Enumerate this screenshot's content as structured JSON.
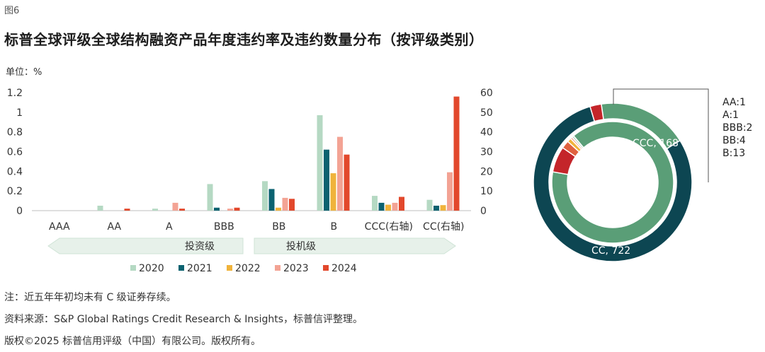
{
  "figure_label": "图6",
  "title": "标普全球评级全球结构融资产品年度违约率及违约数量分布（按评级类别）",
  "unit_label": "单位：%",
  "chart_data": [
    {
      "type": "bar",
      "categories": [
        "AAA",
        "AA",
        "A",
        "BBB",
        "BB",
        "B",
        "CCC(右轴)",
        "CC(右轴)"
      ],
      "right_axis_categories": [
        "CCC(右轴)",
        "CC(右轴)"
      ],
      "series": [
        {
          "name": "2020",
          "color": "#b5d9c3",
          "values": [
            0,
            0.05,
            0.02,
            0.27,
            0.3,
            0.97,
            7.5,
            5.5
          ]
        },
        {
          "name": "2021",
          "color": "#0b6270",
          "values": [
            0,
            0,
            0,
            0.03,
            0.22,
            0.62,
            4,
            2.5
          ]
        },
        {
          "name": "2022",
          "color": "#f0b33b",
          "values": [
            0,
            0,
            0,
            0,
            0.03,
            0.38,
            3,
            2.8
          ]
        },
        {
          "name": "2023",
          "color": "#f3a394",
          "values": [
            0,
            0,
            0.08,
            0.02,
            0.13,
            0.75,
            4,
            19.5
          ]
        },
        {
          "name": "2024",
          "color": "#e2482c",
          "values": [
            0,
            0.02,
            0.02,
            0.03,
            0.12,
            0.57,
            7,
            58
          ]
        }
      ],
      "left_axis": {
        "ticks": [
          "0",
          "0.2",
          "0.4",
          "0.6",
          "0.8",
          "1",
          "1.2"
        ],
        "ylim": [
          0,
          1.2
        ]
      },
      "right_axis": {
        "ticks": [
          "0",
          "10",
          "20",
          "30",
          "40",
          "50",
          "60"
        ],
        "ylim": [
          0,
          60
        ]
      },
      "bands": [
        {
          "label": "投资级",
          "direction": "left"
        },
        {
          "label": "投机级",
          "direction": "right"
        }
      ]
    },
    {
      "type": "pie",
      "subtype": "nested-donut",
      "inner": [
        {
          "label": "CCC",
          "value": 168,
          "color": "#5a9e77",
          "text": "CCC, 168"
        },
        {
          "label": "B",
          "value": 13,
          "color": "#c4252a"
        },
        {
          "label": "BB",
          "value": 4,
          "color": "#e0613f"
        },
        {
          "label": "BBB",
          "value": 2,
          "color": "#f0b33b"
        },
        {
          "label": "A",
          "value": 1,
          "color": "#f3a394"
        },
        {
          "label": "AA",
          "value": 1,
          "color": "#b5d9c3"
        }
      ],
      "outer": [
        {
          "label": "CCC",
          "value": 168,
          "color": "#5a9e77"
        },
        {
          "label": "CC",
          "value": 722,
          "color": "#0d4652",
          "text": "CC, 722"
        },
        {
          "label": "others",
          "value": 21,
          "color": "#c4252a"
        }
      ],
      "callout_lines": [
        "AA:1",
        "A:1",
        "BBB:2",
        "BB:4",
        "B:13"
      ]
    }
  ],
  "notes": [
    "注：近五年年初均未有 C 级证券存续。",
    "资料来源：S&P Global Ratings Credit Research & Insights，标普信评整理。",
    "版权©2025 标普信用评级（中国）有限公司。版权所有。"
  ]
}
